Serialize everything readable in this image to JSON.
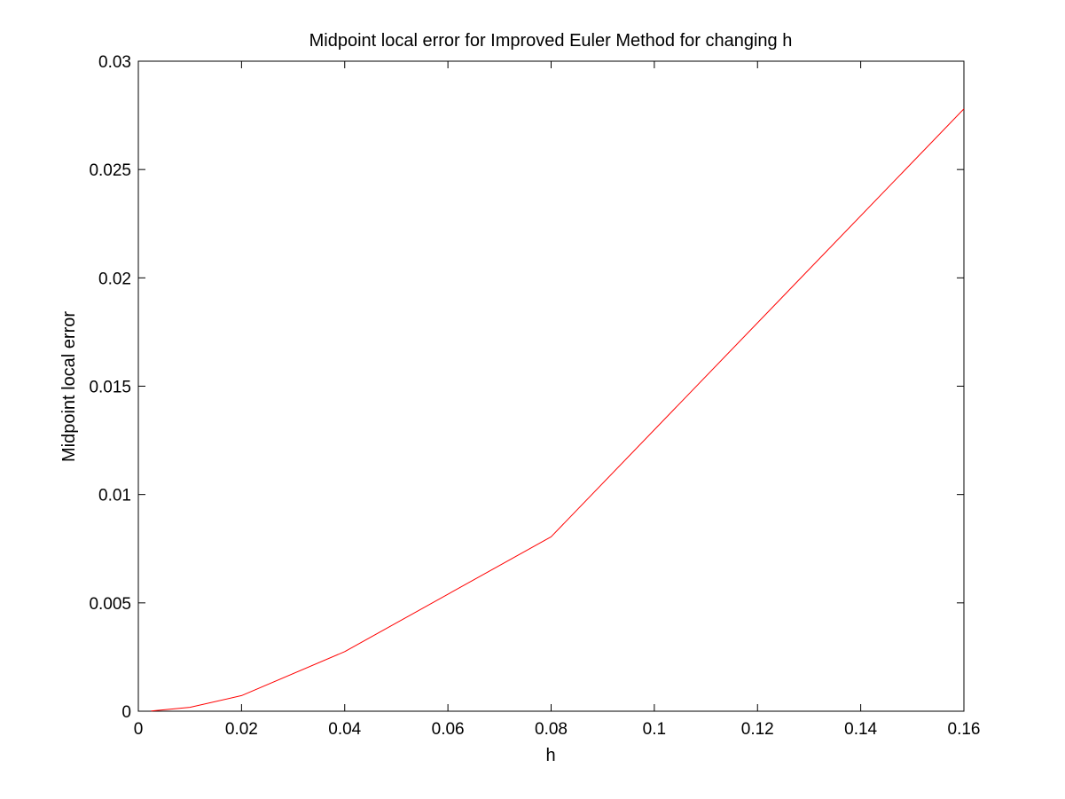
{
  "chart_data": {
    "type": "line",
    "title": "Midpoint local error for Improved Euler Method for changing h",
    "xlabel": "h",
    "ylabel": "Midpoint local error",
    "xlim": [
      0,
      0.16
    ],
    "ylim": [
      0,
      0.03
    ],
    "x_ticks": [
      "0",
      "0.02",
      "0.04",
      "0.06",
      "0.08",
      "0.1",
      "0.12",
      "0.14",
      "0.16"
    ],
    "x_tick_values": [
      0,
      0.02,
      0.04,
      0.06,
      0.08,
      0.1,
      0.12,
      0.14,
      0.16
    ],
    "y_ticks": [
      "0",
      "0.005",
      "0.01",
      "0.015",
      "0.02",
      "0.025",
      "0.03"
    ],
    "y_tick_values": [
      0,
      0.005,
      0.01,
      0.015,
      0.02,
      0.025,
      0.03
    ],
    "grid": false,
    "series": [
      {
        "color": "#ff0000",
        "x": [
          0.0025,
          0.01,
          0.02,
          0.04,
          0.08,
          0.16
        ],
        "y": [
          1e-05,
          0.00018,
          0.00072,
          0.00275,
          0.00805,
          0.0278
        ]
      }
    ]
  }
}
